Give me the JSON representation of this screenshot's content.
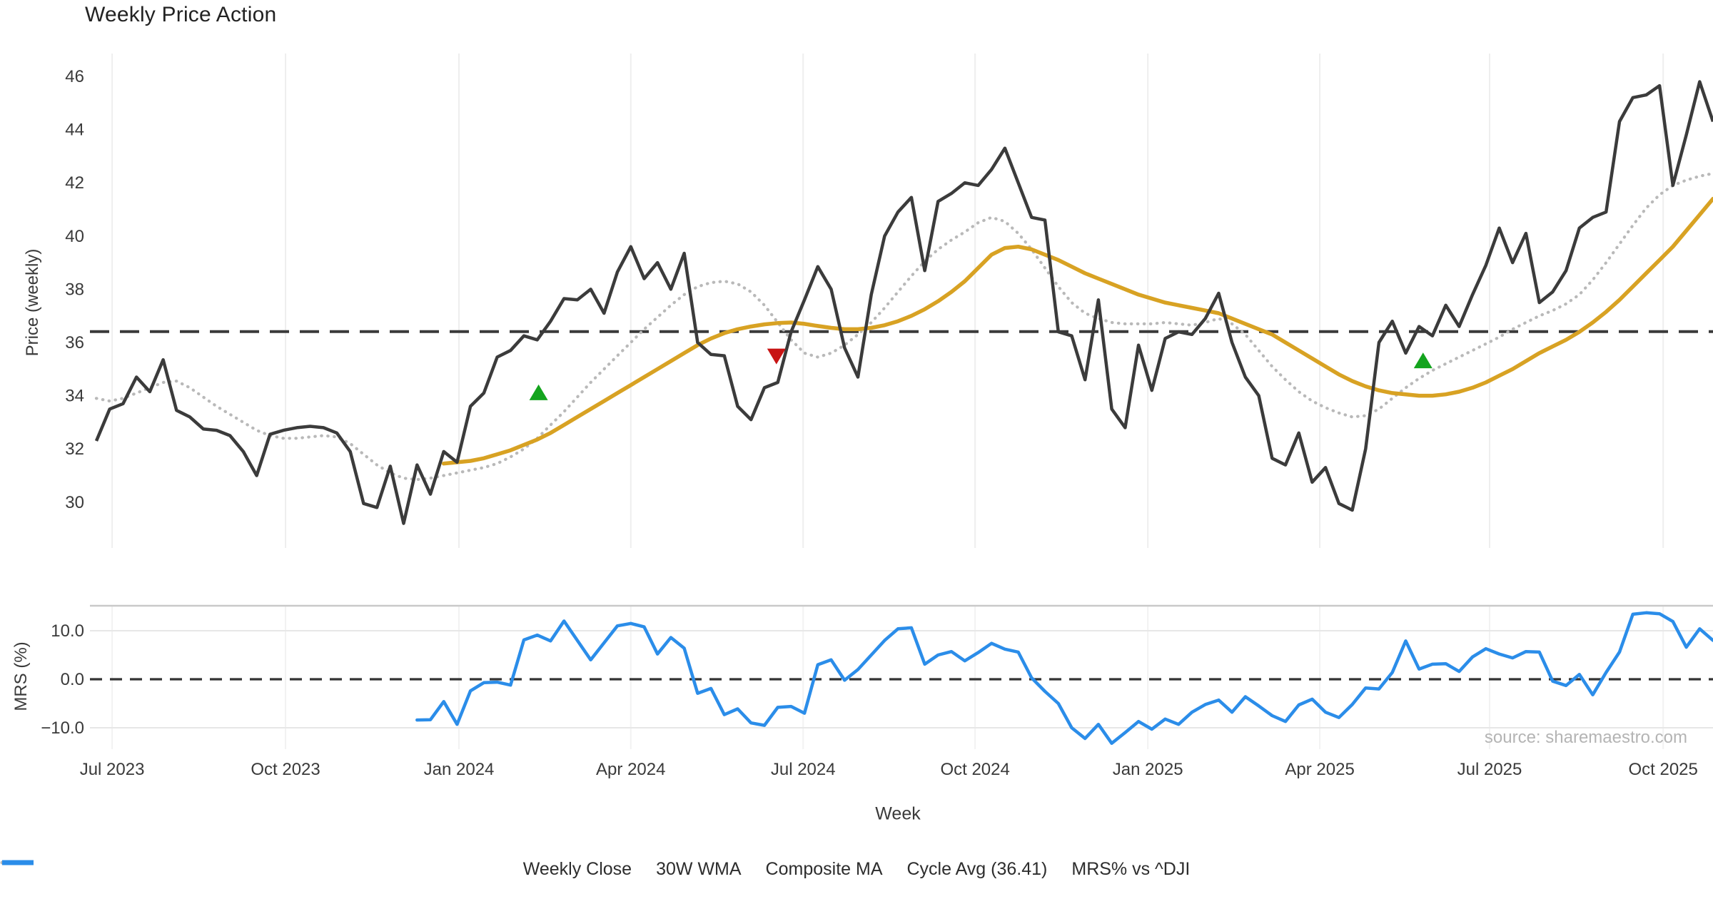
{
  "title": "Weekly Price Action",
  "source": "source: sharemaestro.com",
  "xlabel": "Week",
  "colors": {
    "weekly_close": "#3b3b3b",
    "wma_30w": "#d8a223",
    "composite_ma": "#b9b9b9",
    "cycle_avg": "#3a3a3a",
    "mrs": "#2b8de9",
    "buy_marker": "#14a41e",
    "sell_marker": "#c81414",
    "grid": "#eeeeee",
    "panel_spine": "#c9c9c9",
    "tick_text": "#3a3a3a"
  },
  "legend": [
    {
      "label": "Weekly Close",
      "style": "solid",
      "color": "#4a4a4a",
      "width": 7
    },
    {
      "label": "30W WMA",
      "style": "solid",
      "color": "#d8a223",
      "width": 7
    },
    {
      "label": "Composite MA",
      "style": "dotted",
      "color": "#b9b9b9",
      "width": 5
    },
    {
      "label": "Cycle Avg (36.41)",
      "style": "dashed",
      "color": "#3a3a3a",
      "width": 4
    },
    {
      "label": "MRS% vs ^DJI",
      "style": "solid",
      "color": "#2b8de9",
      "width": 7
    }
  ],
  "chart_data": [
    {
      "type": "line",
      "panel": "price",
      "title": "Weekly Price Action",
      "ylabel": "Price (weekly)",
      "ylim": [
        28.8,
        46.9
      ],
      "yticks": [
        46,
        44,
        42,
        40,
        38,
        36,
        34,
        32,
        30
      ],
      "grid": "vertical-only",
      "cycle_avg": 36.41,
      "x_unit": "weekly index from 2023-06-30",
      "xticks": [
        {
          "label": "Jul 2023",
          "week": 1.18
        },
        {
          "label": "Oct 2023",
          "week": 14.16
        },
        {
          "label": "Jan 2024",
          "week": 27.14
        },
        {
          "label": "Apr 2024",
          "week": 40.0
        },
        {
          "label": "Jul 2024",
          "week": 52.9
        },
        {
          "label": "Oct 2024",
          "week": 65.77
        },
        {
          "label": "Jan 2025",
          "week": 78.7
        },
        {
          "label": "Apr 2025",
          "week": 91.57
        },
        {
          "label": "Jul 2025",
          "week": 104.28
        },
        {
          "label": "Oct 2025",
          "week": 117.27
        }
      ],
      "series": [
        {
          "name": "Weekly Close",
          "key": "weekly_close",
          "start_week": 0,
          "values": [
            32.3,
            33.5,
            33.7,
            34.7,
            34.15,
            35.35,
            33.45,
            33.2,
            32.75,
            32.7,
            32.5,
            31.9,
            31.0,
            32.55,
            32.7,
            32.8,
            32.85,
            32.8,
            32.6,
            31.9,
            29.95,
            29.8,
            31.35,
            29.2,
            31.4,
            30.3,
            31.9,
            31.5,
            33.6,
            34.1,
            35.45,
            35.7,
            36.25,
            36.1,
            36.8,
            37.65,
            37.6,
            38.0,
            37.1,
            38.65,
            39.6,
            38.4,
            39.0,
            38.0,
            39.35,
            36.0,
            35.55,
            35.5,
            33.6,
            33.1,
            34.3,
            34.5,
            36.4,
            37.6,
            38.85,
            38.0,
            35.8,
            34.7,
            37.8,
            40.0,
            40.9,
            41.45,
            38.7,
            41.3,
            41.6,
            42.0,
            41.9,
            42.5,
            43.3,
            42.0,
            40.7,
            40.6,
            36.4,
            36.25,
            34.6,
            37.6,
            33.5,
            32.8,
            35.9,
            34.2,
            36.15,
            36.4,
            36.3,
            36.9,
            37.85,
            36.0,
            34.7,
            34.0,
            31.65,
            31.4,
            32.6,
            30.75,
            31.3,
            29.95,
            29.7,
            32.0,
            36.0,
            36.8,
            35.6,
            36.6,
            36.25,
            37.4,
            36.6,
            37.8,
            38.9,
            40.3,
            39.0,
            40.1,
            37.5,
            37.9,
            38.7,
            40.3,
            40.7,
            40.9,
            44.3,
            45.2,
            45.3,
            45.65,
            41.9,
            43.8,
            45.8,
            44.3
          ]
        },
        {
          "name": "30W WMA",
          "key": "wma_30w",
          "start_week": 26,
          "values": [
            31.45,
            31.5,
            31.55,
            31.65,
            31.8,
            31.95,
            32.15,
            32.35,
            32.6,
            32.9,
            33.2,
            33.5,
            33.8,
            34.1,
            34.4,
            34.7,
            35.0,
            35.3,
            35.6,
            35.9,
            36.15,
            36.35,
            36.5,
            36.6,
            36.68,
            36.73,
            36.75,
            36.7,
            36.62,
            36.55,
            36.5,
            36.5,
            36.55,
            36.65,
            36.8,
            37.0,
            37.25,
            37.55,
            37.9,
            38.3,
            38.8,
            39.3,
            39.55,
            39.6,
            39.5,
            39.3,
            39.1,
            38.85,
            38.6,
            38.4,
            38.2,
            38.0,
            37.8,
            37.65,
            37.5,
            37.4,
            37.3,
            37.2,
            37.1,
            36.9,
            36.7,
            36.5,
            36.3,
            36.0,
            35.7,
            35.4,
            35.1,
            34.8,
            34.55,
            34.35,
            34.2,
            34.1,
            34.05,
            34.0,
            34.0,
            34.05,
            34.15,
            34.3,
            34.5,
            34.75,
            35.0,
            35.3,
            35.6,
            35.85,
            36.1,
            36.4,
            36.75,
            37.15,
            37.6,
            38.1,
            38.6,
            39.1,
            39.6,
            40.2,
            40.8,
            41.4
          ]
        },
        {
          "name": "Composite MA",
          "key": "composite_ma",
          "start_week": 0,
          "values": [
            33.9,
            33.8,
            33.9,
            34.1,
            34.3,
            34.5,
            34.55,
            34.3,
            33.95,
            33.6,
            33.3,
            33.0,
            32.7,
            32.5,
            32.4,
            32.4,
            32.45,
            32.5,
            32.45,
            32.2,
            31.8,
            31.4,
            31.1,
            30.9,
            30.85,
            30.9,
            31.0,
            31.1,
            31.2,
            31.3,
            31.45,
            31.7,
            32.0,
            32.4,
            32.9,
            33.4,
            33.95,
            34.5,
            35.0,
            35.5,
            36.0,
            36.5,
            36.95,
            37.4,
            37.8,
            38.1,
            38.25,
            38.3,
            38.2,
            37.9,
            37.4,
            36.75,
            36.1,
            35.6,
            35.45,
            35.6,
            35.9,
            36.3,
            36.75,
            37.3,
            37.9,
            38.5,
            39.05,
            39.5,
            39.85,
            40.15,
            40.5,
            40.7,
            40.55,
            40.1,
            39.5,
            38.8,
            38.1,
            37.5,
            37.1,
            36.9,
            36.75,
            36.7,
            36.7,
            36.7,
            36.75,
            36.7,
            36.65,
            36.75,
            36.9,
            36.7,
            36.3,
            35.7,
            35.1,
            34.6,
            34.15,
            33.8,
            33.55,
            33.35,
            33.2,
            33.25,
            33.5,
            33.9,
            34.3,
            34.65,
            34.95,
            35.2,
            35.45,
            35.7,
            35.95,
            36.2,
            36.5,
            36.75,
            37.0,
            37.2,
            37.45,
            37.8,
            38.35,
            39.0,
            39.7,
            40.4,
            41.05,
            41.55,
            41.9,
            42.1,
            42.25,
            42.35
          ]
        }
      ],
      "markers": [
        {
          "shape": "triangle-up",
          "color": "#14a41e",
          "week": 33.1,
          "value": 34.1
        },
        {
          "shape": "triangle-down",
          "color": "#c81414",
          "week": 50.9,
          "value": 35.5
        },
        {
          "shape": "triangle-up",
          "color": "#14a41e",
          "week": 99.3,
          "value": 35.3
        }
      ]
    },
    {
      "type": "line",
      "panel": "oscillator",
      "ylabel": "MRS (%)",
      "ylim": [
        -15.2,
        15.2
      ],
      "yticks": [
        {
          "value": 10,
          "label": "10.0"
        },
        {
          "value": 0,
          "label": "0.0"
        },
        {
          "value": -10,
          "label": "−10.0"
        }
      ],
      "zero_line_dashed": true,
      "series": [
        {
          "name": "MRS% vs ^DJI",
          "key": "mrs",
          "start_week": 24,
          "values": [
            -8.4,
            -8.35,
            -4.6,
            -9.3,
            -2.4,
            -0.7,
            -0.6,
            -1.2,
            8.1,
            9.1,
            7.9,
            12.0,
            8.0,
            4.0,
            7.5,
            11.0,
            11.5,
            10.8,
            5.2,
            8.6,
            6.4,
            -2.9,
            -1.9,
            -7.3,
            -6.1,
            -9.0,
            -9.5,
            -5.8,
            -5.6,
            -7.0,
            3.0,
            4.0,
            -0.2,
            2.0,
            5.0,
            8.0,
            10.4,
            10.6,
            3.1,
            5.0,
            5.7,
            3.8,
            5.5,
            7.4,
            6.2,
            5.6,
            0.3,
            -2.5,
            -5.0,
            -10.0,
            -12.2,
            -9.3,
            -13.2,
            -11.0,
            -8.7,
            -10.3,
            -8.2,
            -9.3,
            -6.8,
            -5.2,
            -4.3,
            -6.8,
            -3.6,
            -5.5,
            -7.5,
            -8.7,
            -5.3,
            -4.1,
            -6.8,
            -7.9,
            -5.2,
            -1.8,
            -2.0,
            1.4,
            7.9,
            2.1,
            3.1,
            3.2,
            1.6,
            4.6,
            6.3,
            5.2,
            4.4,
            5.7,
            5.6,
            -0.4,
            -1.3,
            1.0,
            -3.2,
            1.4,
            5.6,
            13.4,
            13.7,
            13.5,
            11.9,
            6.6,
            10.4,
            8.0
          ]
        }
      ]
    }
  ]
}
